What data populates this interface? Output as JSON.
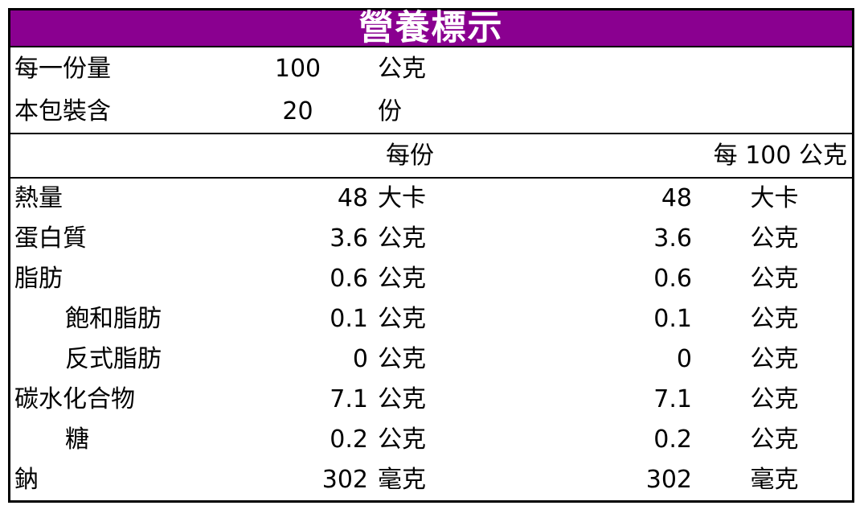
{
  "title": "營養標示",
  "colors": {
    "title_bg": "#8A0090",
    "title_text": "#FFFFFF",
    "border": "#000000",
    "text": "#000000",
    "background": "#FFFFFF"
  },
  "serving_info": [
    {
      "label": "每一份量",
      "value": "100",
      "unit": "公克"
    },
    {
      "label": "本包裝含",
      "value": "20",
      "unit": "份"
    }
  ],
  "column_headers": {
    "per_serving": "每份",
    "per_100g": "每 100 公克"
  },
  "nutrients": [
    {
      "label": "熱量",
      "indent": false,
      "per_serving_value": "48",
      "per_serving_unit": "大卡",
      "per_100g_value": "48",
      "per_100g_unit": "大卡"
    },
    {
      "label": "蛋白質",
      "indent": false,
      "per_serving_value": "3.6",
      "per_serving_unit": "公克",
      "per_100g_value": "3.6",
      "per_100g_unit": "公克"
    },
    {
      "label": "脂肪",
      "indent": false,
      "per_serving_value": "0.6",
      "per_serving_unit": "公克",
      "per_100g_value": "0.6",
      "per_100g_unit": "公克"
    },
    {
      "label": "飽和脂肪",
      "indent": true,
      "per_serving_value": "0.1",
      "per_serving_unit": "公克",
      "per_100g_value": "0.1",
      "per_100g_unit": "公克"
    },
    {
      "label": "反式脂肪",
      "indent": true,
      "per_serving_value": "0",
      "per_serving_unit": "公克",
      "per_100g_value": "0",
      "per_100g_unit": "公克"
    },
    {
      "label": "碳水化合物",
      "indent": false,
      "per_serving_value": "7.1",
      "per_serving_unit": "公克",
      "per_100g_value": "7.1",
      "per_100g_unit": "公克"
    },
    {
      "label": "糖",
      "indent": true,
      "per_serving_value": "0.2",
      "per_serving_unit": "公克",
      "per_100g_value": "0.2",
      "per_100g_unit": "公克"
    },
    {
      "label": "鈉",
      "indent": false,
      "per_serving_value": "302",
      "per_serving_unit": "毫克",
      "per_100g_value": "302",
      "per_100g_unit": "毫克"
    }
  ]
}
